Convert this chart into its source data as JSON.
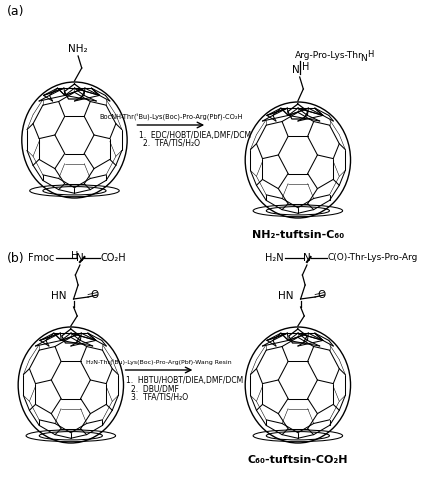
{
  "bg_color": "#ffffff",
  "line_color": "#000000",
  "title_a": "(a)",
  "title_b": "(b)",
  "reagent_a_top": "BocNH-Thr(ᵗBu)-Lys(Boc)-Pro-Arg(Pbf)-CO₂H",
  "reagent_a_1": "1.  EDC/HOBT/DIEA,DMF/DCM",
  "reagent_a_2": "2.  TFA/TIS/H₂O",
  "reagent_b_top": "H₂N-Thr(ᵗBu)-Lys(Boc)-Pro-Arg(Pbf)-Wang Resin",
  "reagent_b_1": "1.  HBTU/HOBT/DIEA,DMF/DCM",
  "reagent_b_2": "2.  DBU/DMF",
  "reagent_b_3": "3.  TFA/TIS/H₂O",
  "label_a": "NH₂-tuftsin-C₆₀",
  "label_b": "C₆₀-tuftsin-CO₂H"
}
